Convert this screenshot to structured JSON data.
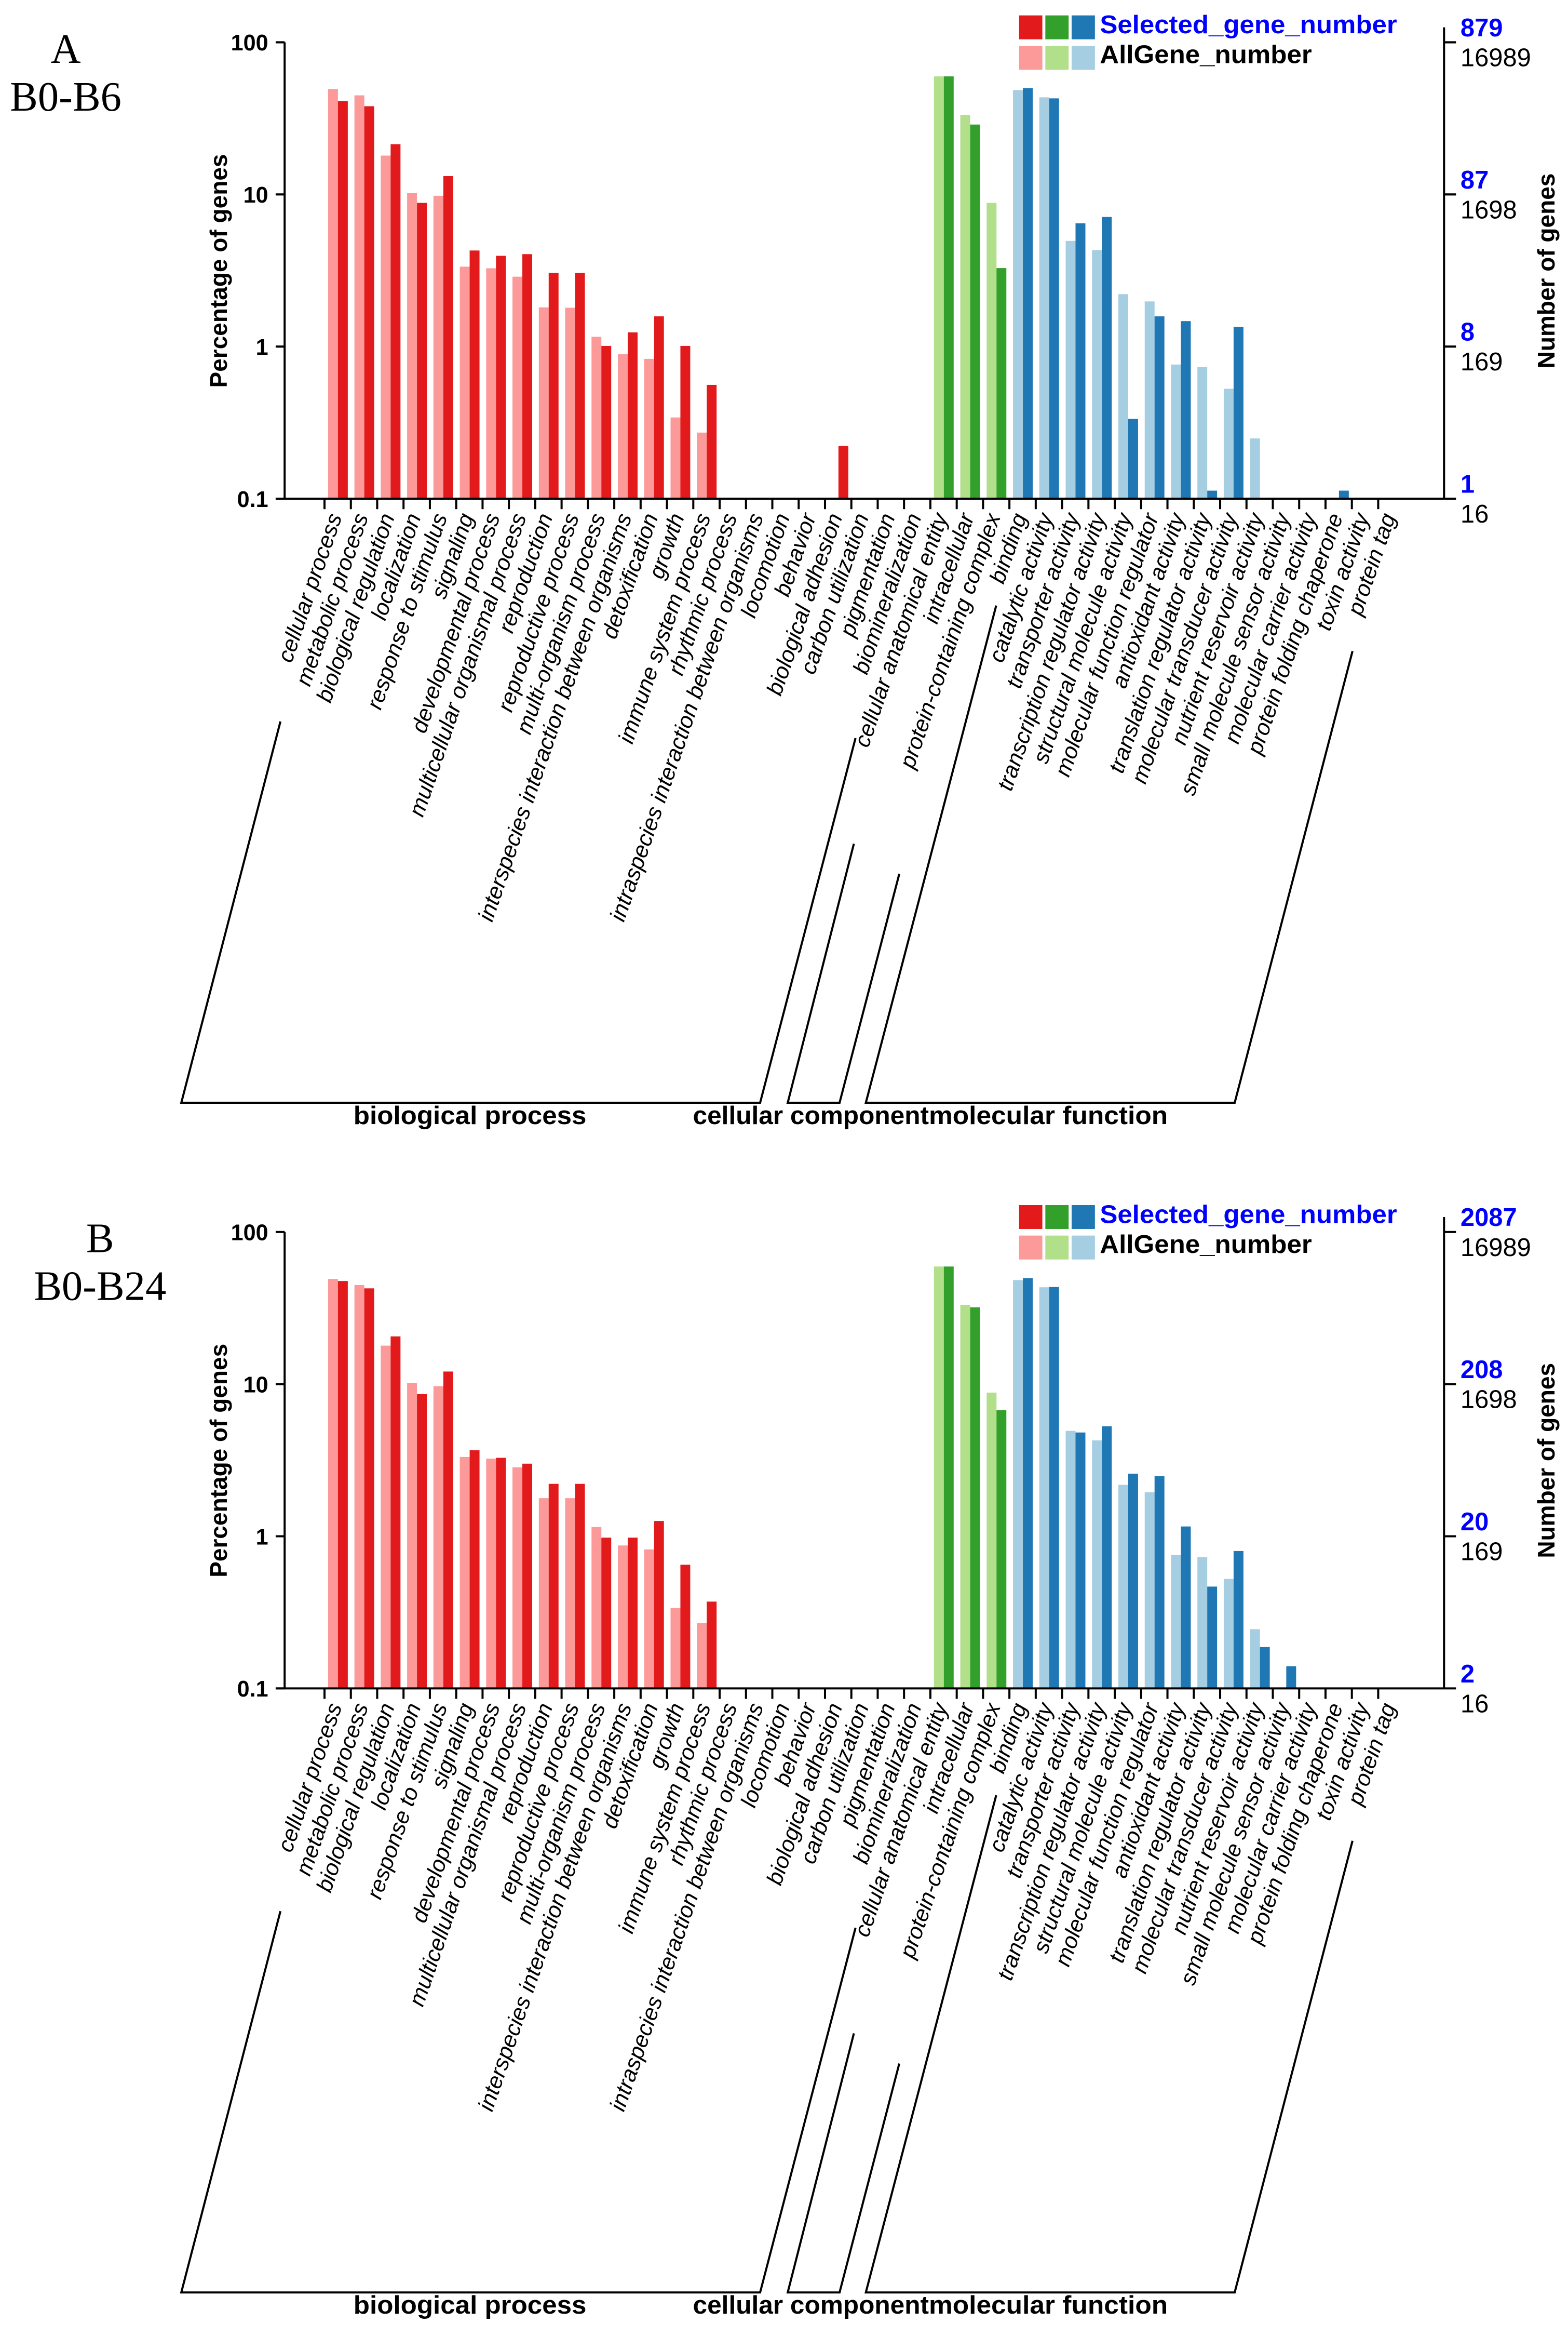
{
  "colors": {
    "bp_selected": "#e31a1c",
    "bp_all": "#fb9a99",
    "cc_selected": "#33a02c",
    "cc_all": "#b2df8a",
    "mf_selected": "#1f78b4",
    "mf_all": "#a6cee3",
    "selected_text": "#0000ff",
    "all_text": "#000000"
  },
  "chart_data": [
    {
      "type": "bar",
      "panel_label": "A",
      "comparison": "B0-B6",
      "title": "",
      "ylabel": "Percentage of genes",
      "y2label": "Number of genes",
      "yscale": "log",
      "ylim": [
        0.1,
        100
      ],
      "yticks": [
        "100",
        "10",
        "1",
        "0.1"
      ],
      "y2ticks_selected": [
        "879",
        "87",
        "8",
        "1"
      ],
      "y2ticks_all": [
        "16989",
        "1698",
        "169",
        "16"
      ],
      "legend_position": "top-right",
      "legend": [
        "Selected_gene_number",
        "AllGene_number"
      ],
      "groups": [
        {
          "name": "biological process",
          "start": 0,
          "end": 22
        },
        {
          "name": "cellular component",
          "start": 23,
          "end": 25
        },
        {
          "name": "molecular function",
          "start": 26,
          "end": 40
        }
      ],
      "categories": [
        "cellular process",
        "metabolic process",
        "biological regulation",
        "localization",
        "response to stimulus",
        "signaling",
        "developmental process",
        "multicellular organismal process",
        "reproduction",
        "reproductive process",
        "multi-organism process",
        "interspecies interaction between organisms",
        "detoxification",
        "growth",
        "immune system process",
        "rhythmic process",
        "intraspecies interaction between organisms",
        "locomotion",
        "behavior",
        "biological adhesion",
        "carbon utilization",
        "pigmentation",
        "biomineralization",
        "cellular anatomical entity",
        "intracellular",
        "protein-containing complex",
        "binding",
        "catalytic activity",
        "transporter activity",
        "transcription regulator activity",
        "structural molecule activity",
        "molecular function regulator",
        "antioxidant activity",
        "translation regulator activity",
        "molecular transducer activity",
        "nutrient reservoir activity",
        "small molecule sensor activity",
        "molecular carrier activity",
        "protein folding chaperone",
        "toxin activity",
        "protein tag"
      ],
      "series": [
        {
          "name": "AllGene_number",
          "values": [
            49.3,
            44.8,
            18.0,
            10.2,
            9.8,
            3.35,
            3.27,
            2.88,
            1.81,
            1.8,
            1.16,
            0.89,
            0.83,
            0.342,
            0.272,
            0,
            0,
            0,
            0,
            0,
            0,
            0,
            0,
            59.7,
            33.3,
            8.8,
            48.5,
            43.5,
            4.95,
            4.31,
            2.21,
            1.98,
            0.762,
            0.736,
            0.528,
            0.249,
            0,
            0,
            0,
            0,
            0
          ]
        },
        {
          "name": "Selected_gene_number",
          "values": [
            41.1,
            38.0,
            21.4,
            8.8,
            13.2,
            4.28,
            3.95,
            4.05,
            3.05,
            3.05,
            1.01,
            1.24,
            1.58,
            1.01,
            0.56,
            0,
            0,
            0,
            0,
            0.222,
            0,
            0,
            0,
            59.7,
            28.8,
            3.28,
            50.0,
            42.8,
            6.46,
            7.11,
            0.335,
            1.58,
            1.47,
            0.113,
            1.35,
            0,
            0,
            0,
            0.113,
            0,
            0
          ]
        }
      ]
    },
    {
      "type": "bar",
      "panel_label": "B",
      "comparison": "B0-B24",
      "title": "",
      "ylabel": "Percentage of genes",
      "y2label": "Number of genes",
      "yscale": "log",
      "ylim": [
        0.1,
        100
      ],
      "yticks": [
        "100",
        "10",
        "1",
        "0.1"
      ],
      "y2ticks_selected": [
        "2087",
        "208",
        "20",
        "2"
      ],
      "y2ticks_all": [
        "16989",
        "1698",
        "169",
        "16"
      ],
      "legend_position": "top-right",
      "legend": [
        "Selected_gene_number",
        "AllGene_number"
      ],
      "groups": [
        {
          "name": "biological process",
          "start": 0,
          "end": 22
        },
        {
          "name": "cellular component",
          "start": 23,
          "end": 25
        },
        {
          "name": "molecular function",
          "start": 26,
          "end": 40
        }
      ],
      "categories": [
        "cellular process",
        "metabolic process",
        "biological regulation",
        "localization",
        "response to stimulus",
        "signaling",
        "developmental process",
        "multicellular organismal process",
        "reproduction",
        "reproductive process",
        "multi-organism process",
        "interspecies interaction between organisms",
        "detoxification",
        "growth",
        "immune system process",
        "rhythmic process",
        "intraspecies interaction between organisms",
        "locomotion",
        "behavior",
        "biological adhesion",
        "carbon utilization",
        "pigmentation",
        "biomineralization",
        "cellular anatomical entity",
        "intracellular",
        "protein-containing complex",
        "binding",
        "catalytic activity",
        "transporter activity",
        "transcription regulator activity",
        "structural molecule activity",
        "molecular function regulator",
        "antioxidant activity",
        "translation regulator activity",
        "molecular transducer activity",
        "nutrient reservoir activity",
        "small molecule sensor activity",
        "molecular carrier activity",
        "protein folding chaperone",
        "toxin activity",
        "protein tag"
      ],
      "series": [
        {
          "name": "AllGene_number",
          "values": [
            49.1,
            44.8,
            17.9,
            10.2,
            9.7,
            3.32,
            3.24,
            2.84,
            1.78,
            1.78,
            1.15,
            0.87,
            0.82,
            0.338,
            0.269,
            0,
            0,
            0,
            0,
            0,
            0,
            0,
            0,
            59.3,
            33.2,
            8.8,
            48.3,
            43.3,
            4.93,
            4.27,
            2.18,
            1.95,
            0.755,
            0.73,
            0.524,
            0.245,
            0,
            0,
            0,
            0,
            0
          ]
        },
        {
          "name": "Selected_gene_number",
          "values": [
            47.6,
            42.6,
            20.6,
            8.6,
            12.1,
            3.68,
            3.28,
            3.0,
            2.21,
            2.21,
            0.98,
            0.98,
            1.26,
            0.65,
            0.372,
            0,
            0,
            0,
            0,
            0,
            0,
            0,
            0,
            59.3,
            32.0,
            6.76,
            49.8,
            43.5,
            4.81,
            5.29,
            2.58,
            2.49,
            1.16,
            0.467,
            0.8,
            0.187,
            0.14,
            0,
            0,
            0,
            0
          ]
        }
      ]
    }
  ]
}
